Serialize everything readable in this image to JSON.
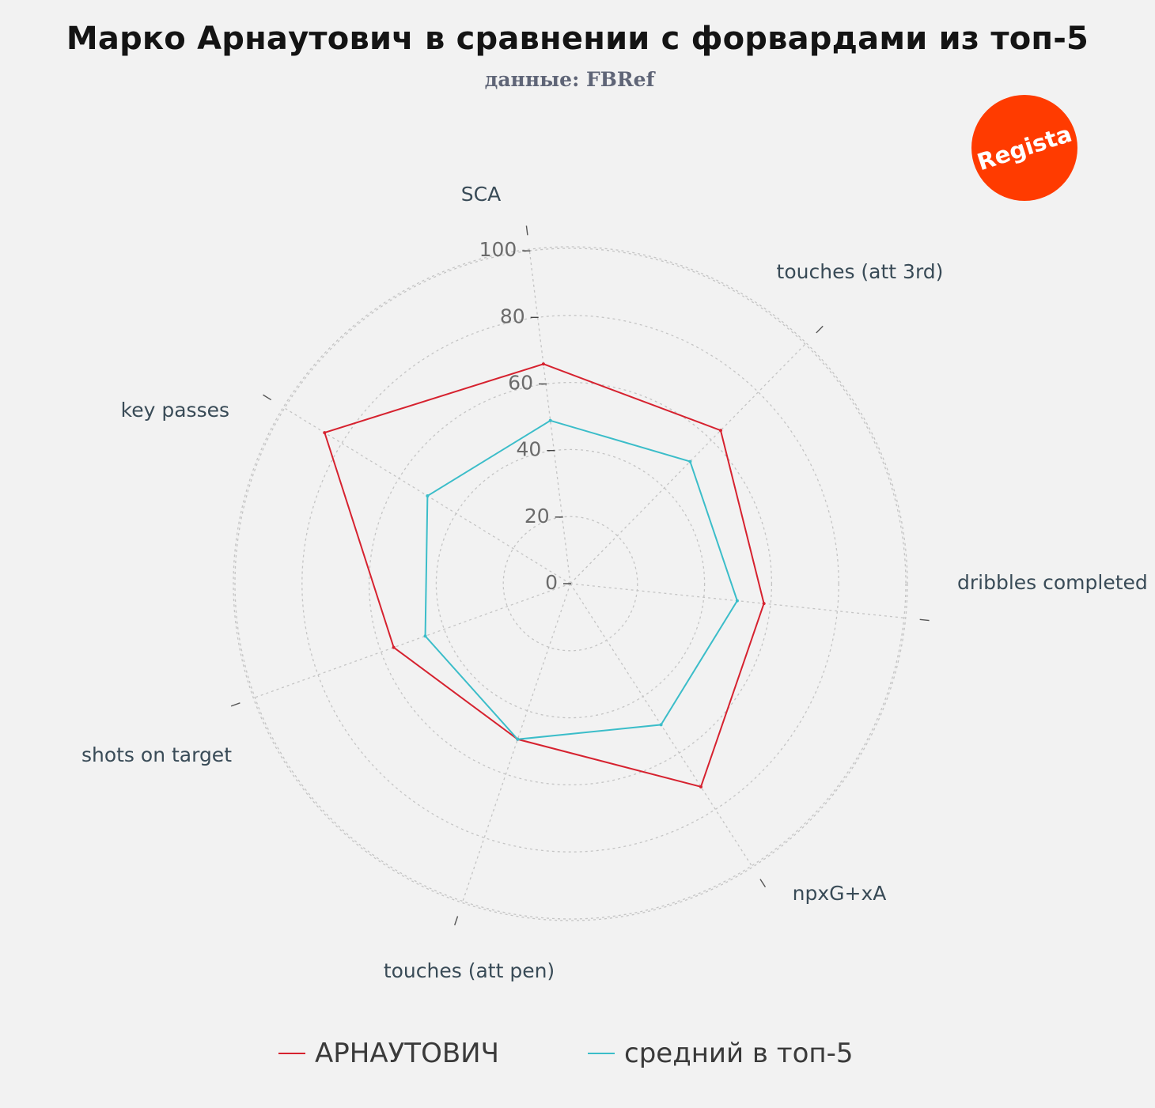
{
  "title": "Марко Арнаутович в сравнении с форвардами из топ-5",
  "subtitle": "данные: FBRef",
  "logo": {
    "text": "Regista",
    "color": "#ff3b00"
  },
  "colors": {
    "player": "#d6222f",
    "average": "#3bbdc9",
    "grid": "#c4c4c4",
    "tick_text": "#6b6b6b",
    "axis_text": "#394b57"
  },
  "chart_data": {
    "type": "radar",
    "axes": [
      "SCA",
      "touches (att 3rd)",
      "dribbles completed",
      "npxG+xA",
      "touches (att pen)",
      "shots on target",
      "key passes"
    ],
    "radial_ticks": [
      0,
      20,
      40,
      60,
      80,
      100
    ],
    "radial_range": [
      0,
      100
    ],
    "grid": true,
    "legend_position": "bottom",
    "series": [
      {
        "name": "АРНАУТОВИЧ",
        "values": [
          66,
          64,
          58,
          72,
          49,
          56,
          86
        ]
      },
      {
        "name": "средний в топ-5",
        "values": [
          49,
          51,
          50,
          50,
          49,
          46,
          50
        ]
      }
    ]
  }
}
